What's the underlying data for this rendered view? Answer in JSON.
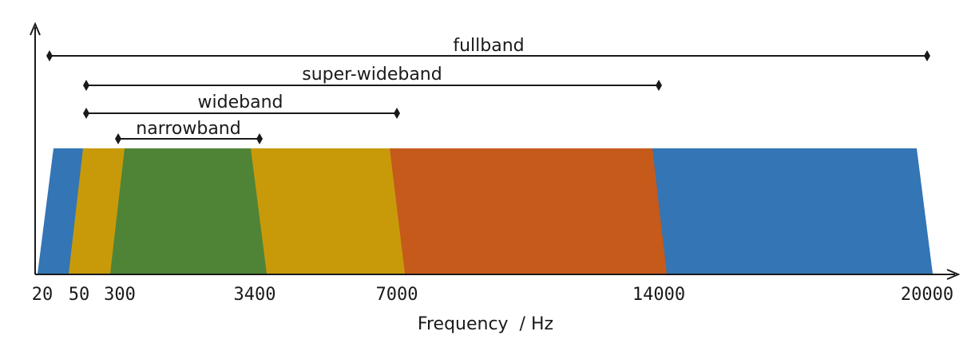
{
  "diagram": {
    "bands": [
      {
        "name": "fullband",
        "from": "20",
        "to": "20000"
      },
      {
        "name": "super-wideband",
        "from": "50",
        "to": "14000"
      },
      {
        "name": "wideband",
        "from": "50",
        "to": "7000"
      },
      {
        "name": "narrowband",
        "from": "300",
        "to": "3400"
      }
    ],
    "spectrum_segments": [
      {
        "segment": "below-50",
        "color": "#3375b5"
      },
      {
        "segment": "50-300",
        "color": "#c89a0a"
      },
      {
        "segment": "300-3400",
        "color": "#4f8436"
      },
      {
        "segment": "3400-7000",
        "color": "#c89a0a"
      },
      {
        "segment": "7000-14000",
        "color": "#c55a1b"
      },
      {
        "segment": "14000-20000",
        "color": "#3375b5"
      }
    ],
    "ticks": [
      "20",
      "50",
      "300",
      "3400",
      "7000",
      "14000",
      "20000"
    ],
    "xlabel": "Frequency  / Hz"
  }
}
